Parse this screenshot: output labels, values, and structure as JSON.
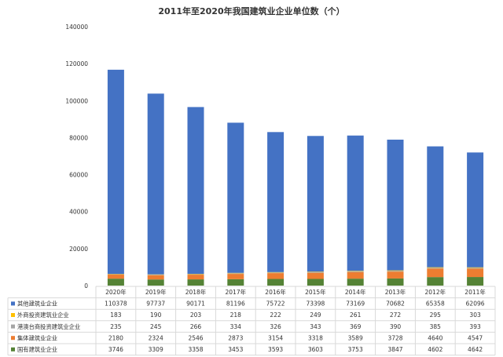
{
  "chart_data": {
    "type": "bar",
    "stacked": true,
    "title": "2011年至2020年我国建筑业企业单位数（个）",
    "xlabel": "",
    "ylabel": "",
    "ylim": [
      0,
      140000
    ],
    "yticks": [
      0,
      20000,
      40000,
      60000,
      80000,
      100000,
      120000,
      140000
    ],
    "grid": false,
    "legend": "bottom-table",
    "categories": [
      "2020年",
      "2019年",
      "2018年",
      "2017年",
      "2016年",
      "2015年",
      "2014年",
      "2013年",
      "2012年",
      "2011年"
    ],
    "series": [
      {
        "name": "国有建筑业企业",
        "color": "#548235",
        "values": [
          3746,
          3309,
          3358,
          3453,
          3593,
          3603,
          3753,
          3847,
          4602,
          4642
        ]
      },
      {
        "name": "集体建筑业企业",
        "color": "#ed7d31",
        "values": [
          2180,
          2324,
          2546,
          2873,
          3154,
          3318,
          3589,
          3728,
          4640,
          4547
        ]
      },
      {
        "name": "港澳台商投资建筑业企业",
        "color": "#a5a5a5",
        "values": [
          235,
          245,
          266,
          334,
          326,
          343,
          369,
          390,
          385,
          393
        ]
      },
      {
        "name": "外商投资建筑业企业",
        "color": "#ffc000",
        "values": [
          183,
          190,
          203,
          218,
          222,
          249,
          261,
          272,
          295,
          303
        ]
      },
      {
        "name": "其他建筑业企业",
        "color": "#4472c4",
        "values": [
          110378,
          97737,
          90171,
          81196,
          75722,
          73398,
          73169,
          70682,
          65358,
          62096
        ]
      }
    ],
    "table_order": [
      "其他建筑业企业",
      "外商投资建筑业企业",
      "港澳台商投资建筑业企业",
      "集体建筑业企业",
      "国有建筑业企业"
    ]
  }
}
